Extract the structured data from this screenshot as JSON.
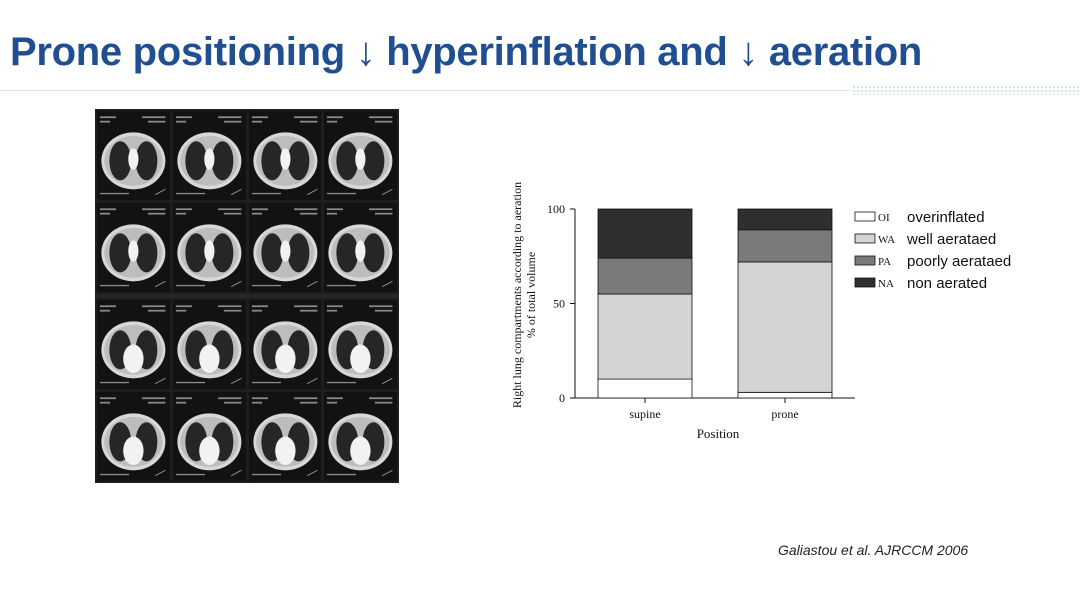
{
  "slide": {
    "title": "Prone positioning ↓ hyperinflation and ↓ aeration",
    "citation": "Galiastou et al.  AJRCCM 2006",
    "title_color": "#1f4e91"
  },
  "figure": {
    "description_icon": "ct-scan-grid",
    "rows": 4,
    "cols": 4
  },
  "chart_data": {
    "type": "bar",
    "stacked": true,
    "categories": [
      "supine",
      "prone"
    ],
    "series": [
      {
        "name": "overinflated",
        "abbr": "OI",
        "color": "#ffffff",
        "values": [
          10,
          3
        ]
      },
      {
        "name": "well aerataed",
        "abbr": "WA",
        "color": "#d4d4d4",
        "values": [
          45,
          69
        ]
      },
      {
        "name": "poorly aerataed",
        "abbr": "PA",
        "color": "#7a7a7a",
        "values": [
          19,
          17
        ]
      },
      {
        "name": "non aerated",
        "abbr": "NA",
        "color": "#2f2f2f",
        "values": [
          26,
          11
        ]
      }
    ],
    "xlabel": "Position",
    "ylabel_line1": "Right lung compartments according to aeration",
    "ylabel_line2": "% of total volume",
    "ylim": [
      0,
      100
    ],
    "yticks": [
      0,
      50,
      100
    ],
    "legend_position": "right",
    "grid": false
  }
}
